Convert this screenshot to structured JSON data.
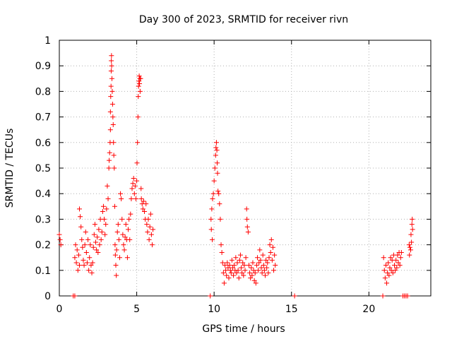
{
  "chart_data": {
    "type": "scatter",
    "title": "Day 300 of 2023, SRMTID for receiver rivn",
    "xlabel": "GPS time / hours",
    "ylabel": "SRMTID / TECUs",
    "xlim": [
      0,
      24
    ],
    "ylim": [
      0,
      1
    ],
    "grid": true,
    "marker": "+",
    "color": "#ff0000",
    "x_ticks": [
      0,
      5,
      10,
      15,
      20
    ],
    "x_tick_labels": [
      "0",
      "5",
      "10",
      "15",
      "20"
    ],
    "y_ticks": [
      0,
      0.1,
      0.2,
      0.3,
      0.4,
      0.5,
      0.6,
      0.7,
      0.8,
      0.9,
      1
    ],
    "y_tick_labels": [
      "0",
      "0.1",
      "0.2",
      "0.3",
      "0.4",
      "0.5",
      "0.6",
      "0.7",
      "0.8",
      "0.9",
      "1"
    ],
    "series": [
      {
        "name": "SRMTID",
        "points": [
          [
            0.0,
            0.24
          ],
          [
            0.05,
            0.22
          ],
          [
            0.1,
            0.2
          ],
          [
            0.9,
            0.0
          ],
          [
            1.0,
            0.0
          ],
          [
            1.0,
            0.15
          ],
          [
            1.05,
            0.2
          ],
          [
            1.1,
            0.13
          ],
          [
            1.15,
            0.18
          ],
          [
            1.2,
            0.1
          ],
          [
            1.25,
            0.16
          ],
          [
            1.3,
            0.12
          ],
          [
            1.3,
            0.34
          ],
          [
            1.35,
            0.31
          ],
          [
            1.4,
            0.27
          ],
          [
            1.45,
            0.22
          ],
          [
            1.5,
            0.19
          ],
          [
            1.55,
            0.14
          ],
          [
            1.6,
            0.12
          ],
          [
            1.65,
            0.2
          ],
          [
            1.7,
            0.25
          ],
          [
            1.75,
            0.17
          ],
          [
            1.8,
            0.13
          ],
          [
            1.85,
            0.22
          ],
          [
            1.9,
            0.1
          ],
          [
            1.95,
            0.15
          ],
          [
            2.0,
            0.2
          ],
          [
            2.05,
            0.12
          ],
          [
            2.1,
            0.09
          ],
          [
            2.15,
            0.13
          ],
          [
            2.2,
            0.19
          ],
          [
            2.25,
            0.24
          ],
          [
            2.3,
            0.28
          ],
          [
            2.35,
            0.21
          ],
          [
            2.4,
            0.18
          ],
          [
            2.45,
            0.23
          ],
          [
            2.5,
            0.17
          ],
          [
            2.55,
            0.26
          ],
          [
            2.6,
            0.2
          ],
          [
            2.65,
            0.3
          ],
          [
            2.7,
            0.22
          ],
          [
            2.75,
            0.25
          ],
          [
            2.8,
            0.33
          ],
          [
            2.85,
            0.35
          ],
          [
            2.9,
            0.3
          ],
          [
            2.95,
            0.24
          ],
          [
            3.0,
            0.28
          ],
          [
            3.05,
            0.34
          ],
          [
            3.1,
            0.43
          ],
          [
            3.15,
            0.38
          ],
          [
            3.2,
            0.5
          ],
          [
            3.22,
            0.53
          ],
          [
            3.25,
            0.56
          ],
          [
            3.28,
            0.6
          ],
          [
            3.3,
            0.65
          ],
          [
            3.3,
            0.72
          ],
          [
            3.32,
            0.78
          ],
          [
            3.34,
            0.82
          ],
          [
            3.35,
            0.88
          ],
          [
            3.36,
            0.92
          ],
          [
            3.37,
            0.94
          ],
          [
            3.38,
            0.9
          ],
          [
            3.4,
            0.85
          ],
          [
            3.42,
            0.8
          ],
          [
            3.44,
            0.75
          ],
          [
            3.46,
            0.7
          ],
          [
            3.48,
            0.67
          ],
          [
            3.5,
            0.6
          ],
          [
            3.52,
            0.55
          ],
          [
            3.55,
            0.5
          ],
          [
            3.58,
            0.35
          ],
          [
            3.6,
            0.2
          ],
          [
            3.62,
            0.16
          ],
          [
            3.65,
            0.12
          ],
          [
            3.68,
            0.08
          ],
          [
            3.7,
            0.18
          ],
          [
            3.75,
            0.25
          ],
          [
            3.8,
            0.28
          ],
          [
            3.85,
            0.22
          ],
          [
            3.9,
            0.15
          ],
          [
            3.95,
            0.4
          ],
          [
            4.0,
            0.38
          ],
          [
            4.05,
            0.3
          ],
          [
            4.1,
            0.24
          ],
          [
            4.15,
            0.2
          ],
          [
            4.2,
            0.18
          ],
          [
            4.25,
            0.23
          ],
          [
            4.3,
            0.28
          ],
          [
            4.35,
            0.22
          ],
          [
            4.4,
            0.15
          ],
          [
            4.45,
            0.26
          ],
          [
            4.5,
            0.3
          ],
          [
            4.55,
            0.22
          ],
          [
            4.6,
            0.32
          ],
          [
            4.65,
            0.38
          ],
          [
            4.7,
            0.42
          ],
          [
            4.75,
            0.44
          ],
          [
            4.8,
            0.46
          ],
          [
            4.85,
            0.4
          ],
          [
            4.9,
            0.43
          ],
          [
            4.95,
            0.38
          ],
          [
            5.0,
            0.45
          ],
          [
            5.02,
            0.52
          ],
          [
            5.05,
            0.6
          ],
          [
            5.08,
            0.7
          ],
          [
            5.1,
            0.78
          ],
          [
            5.12,
            0.82
          ],
          [
            5.14,
            0.84
          ],
          [
            5.16,
            0.86
          ],
          [
            5.18,
            0.83
          ],
          [
            5.2,
            0.85
          ],
          [
            5.22,
            0.8
          ],
          [
            5.25,
            0.85
          ],
          [
            5.28,
            0.42
          ],
          [
            5.3,
            0.38
          ],
          [
            5.35,
            0.36
          ],
          [
            5.4,
            0.34
          ],
          [
            5.45,
            0.37
          ],
          [
            5.5,
            0.33
          ],
          [
            5.55,
            0.3
          ],
          [
            5.6,
            0.36
          ],
          [
            5.65,
            0.28
          ],
          [
            5.7,
            0.25
          ],
          [
            5.75,
            0.3
          ],
          [
            5.8,
            0.22
          ],
          [
            5.85,
            0.27
          ],
          [
            5.9,
            0.32
          ],
          [
            5.95,
            0.24
          ],
          [
            6.0,
            0.2
          ],
          [
            6.05,
            0.26
          ],
          [
            9.75,
            0.0
          ],
          [
            9.8,
            0.3
          ],
          [
            9.82,
            0.26
          ],
          [
            9.85,
            0.34
          ],
          [
            9.88,
            0.22
          ],
          [
            9.9,
            0.38
          ],
          [
            9.95,
            0.4
          ],
          [
            10.0,
            0.45
          ],
          [
            10.05,
            0.5
          ],
          [
            10.1,
            0.55
          ],
          [
            10.12,
            0.58
          ],
          [
            10.15,
            0.6
          ],
          [
            10.18,
            0.57
          ],
          [
            10.2,
            0.52
          ],
          [
            10.22,
            0.48
          ],
          [
            10.25,
            0.41
          ],
          [
            10.3,
            0.4
          ],
          [
            10.35,
            0.36
          ],
          [
            10.4,
            0.3
          ],
          [
            10.45,
            0.2
          ],
          [
            10.5,
            0.17
          ],
          [
            10.55,
            0.13
          ],
          [
            10.6,
            0.09
          ],
          [
            10.65,
            0.05
          ],
          [
            10.7,
            0.12
          ],
          [
            10.75,
            0.1
          ],
          [
            10.8,
            0.08
          ],
          [
            10.85,
            0.13
          ],
          [
            10.9,
            0.11
          ],
          [
            10.95,
            0.07
          ],
          [
            11.0,
            0.12
          ],
          [
            11.05,
            0.1
          ],
          [
            11.1,
            0.09
          ],
          [
            11.15,
            0.14
          ],
          [
            11.2,
            0.11
          ],
          [
            11.25,
            0.08
          ],
          [
            11.3,
            0.12
          ],
          [
            11.35,
            0.1
          ],
          [
            11.4,
            0.15
          ],
          [
            11.45,
            0.09
          ],
          [
            11.5,
            0.13
          ],
          [
            11.55,
            0.1
          ],
          [
            11.6,
            0.07
          ],
          [
            11.65,
            0.14
          ],
          [
            11.7,
            0.16
          ],
          [
            11.75,
            0.11
          ],
          [
            11.8,
            0.09
          ],
          [
            11.85,
            0.13
          ],
          [
            11.9,
            0.08
          ],
          [
            11.95,
            0.12
          ],
          [
            12.0,
            0.1
          ],
          [
            12.05,
            0.15
          ],
          [
            12.1,
            0.34
          ],
          [
            12.12,
            0.3
          ],
          [
            12.15,
            0.27
          ],
          [
            12.2,
            0.25
          ],
          [
            12.25,
            0.12
          ],
          [
            12.3,
            0.09
          ],
          [
            12.35,
            0.07
          ],
          [
            12.4,
            0.11
          ],
          [
            12.45,
            0.08
          ],
          [
            12.5,
            0.13
          ],
          [
            12.55,
            0.1
          ],
          [
            12.6,
            0.06
          ],
          [
            12.65,
            0.09
          ],
          [
            12.7,
            0.05
          ],
          [
            12.75,
            0.12
          ],
          [
            12.8,
            0.15
          ],
          [
            12.85,
            0.1
          ],
          [
            12.9,
            0.13
          ],
          [
            12.95,
            0.18
          ],
          [
            13.0,
            0.14
          ],
          [
            13.05,
            0.11
          ],
          [
            13.1,
            0.09
          ],
          [
            13.15,
            0.16
          ],
          [
            13.2,
            0.12
          ],
          [
            13.25,
            0.1
          ],
          [
            13.3,
            0.08
          ],
          [
            13.35,
            0.14
          ],
          [
            13.4,
            0.11
          ],
          [
            13.45,
            0.13
          ],
          [
            13.5,
            0.09
          ],
          [
            13.55,
            0.15
          ],
          [
            13.6,
            0.2
          ],
          [
            13.65,
            0.17
          ],
          [
            13.7,
            0.22
          ],
          [
            13.75,
            0.14
          ],
          [
            13.8,
            0.19
          ],
          [
            13.85,
            0.1
          ],
          [
            13.9,
            0.16
          ],
          [
            13.95,
            0.12
          ],
          [
            15.2,
            0.0
          ],
          [
            20.9,
            0.0
          ],
          [
            20.95,
            0.15
          ],
          [
            21.0,
            0.1
          ],
          [
            21.05,
            0.07
          ],
          [
            21.1,
            0.12
          ],
          [
            21.15,
            0.05
          ],
          [
            21.2,
            0.09
          ],
          [
            21.25,
            0.13
          ],
          [
            21.3,
            0.08
          ],
          [
            21.35,
            0.11
          ],
          [
            21.4,
            0.15
          ],
          [
            21.45,
            0.1
          ],
          [
            21.5,
            0.14
          ],
          [
            21.55,
            0.09
          ],
          [
            21.6,
            0.16
          ],
          [
            21.65,
            0.12
          ],
          [
            21.7,
            0.1
          ],
          [
            21.75,
            0.14
          ],
          [
            21.8,
            0.11
          ],
          [
            21.85,
            0.16
          ],
          [
            21.9,
            0.13
          ],
          [
            21.95,
            0.17
          ],
          [
            22.0,
            0.12
          ],
          [
            22.05,
            0.15
          ],
          [
            22.1,
            0.17
          ],
          [
            22.2,
            0.0
          ],
          [
            22.3,
            0.0
          ],
          [
            22.4,
            0.0
          ],
          [
            22.5,
            0.0
          ],
          [
            22.6,
            0.2
          ],
          [
            22.62,
            0.16
          ],
          [
            22.65,
            0.19
          ],
          [
            22.7,
            0.18
          ],
          [
            22.72,
            0.24
          ],
          [
            22.75,
            0.21
          ],
          [
            22.78,
            0.28
          ],
          [
            22.8,
            0.3
          ],
          [
            22.82,
            0.26
          ]
        ]
      }
    ]
  }
}
